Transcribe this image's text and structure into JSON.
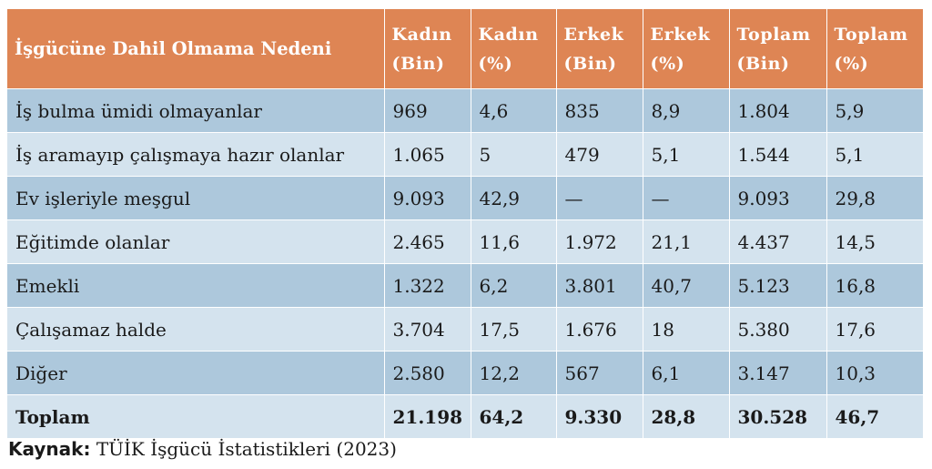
{
  "table": {
    "headers": [
      "İşgücüne Dahil Olmama Nedeni",
      [
        "Kadın",
        "(Bin)"
      ],
      [
        "Kadın",
        "(%)"
      ],
      [
        "Erkek",
        "(Bin)"
      ],
      [
        "Erkek",
        "(%)"
      ],
      [
        "Toplam",
        "(Bin)"
      ],
      [
        "Toplam",
        "(%)"
      ]
    ],
    "rows": [
      [
        "İş bulma ümidi olmayanlar",
        "969",
        "4,6",
        "835",
        "8,9",
        "1.804",
        "5,9"
      ],
      [
        "İş aramayıp çalışmaya hazır olanlar",
        "1.065",
        "5",
        "479",
        "5,1",
        "1.544",
        "5,1"
      ],
      [
        "Ev işleriyle meşgul",
        "9.093",
        "42,9",
        "—",
        "—",
        "9.093",
        "29,8"
      ],
      [
        "Eğitimde olanlar",
        "2.465",
        "11,6",
        "1.972",
        "21,1",
        "4.437",
        "14,5"
      ],
      [
        "Emekli",
        "1.322",
        "6,2",
        "3.801",
        "40,7",
        "5.123",
        "16,8"
      ],
      [
        "Çalışamaz halde",
        "3.704",
        "17,5",
        "1.676",
        "18",
        "5.380",
        "17,6"
      ],
      [
        "Diğer",
        "2.580",
        "12,2",
        "567",
        "6,1",
        "3.147",
        "10,3"
      ],
      [
        "Toplam",
        "21.198",
        "64,2",
        "9.330",
        "28,8",
        "30.528",
        "46,7"
      ]
    ]
  },
  "source": {
    "label": "Kaynak:",
    "text": "TÜİK İşgücü İstatistikleri (2023)"
  },
  "colors": {
    "header_bg": "#de8554",
    "row_dark": "#adc8dc",
    "row_light": "#d4e3ee"
  }
}
